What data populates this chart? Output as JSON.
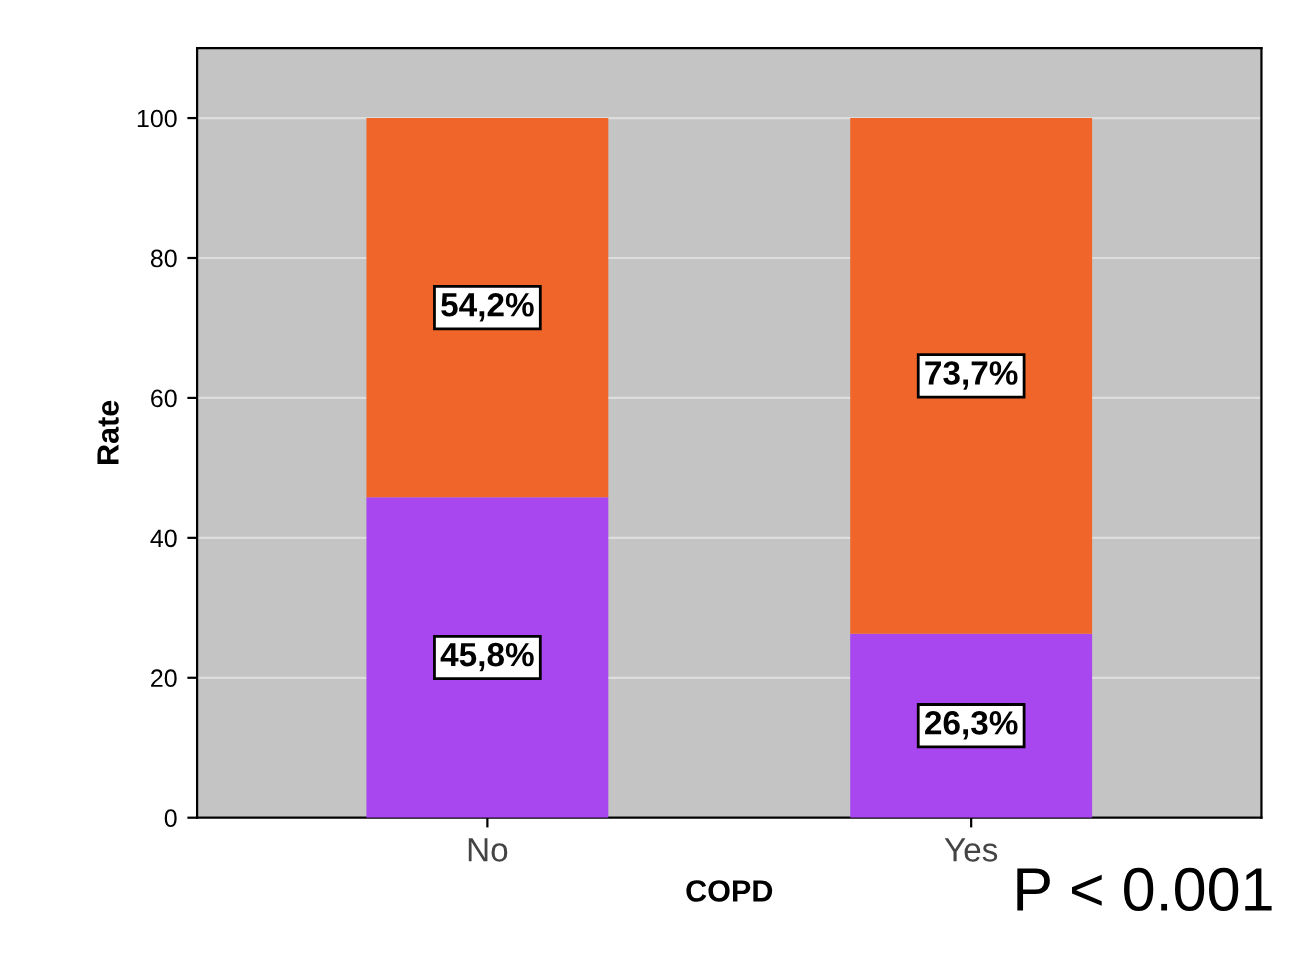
{
  "chart_data": {
    "type": "bar",
    "stacked": true,
    "xlabel": "COPD",
    "ylabel": "Rate",
    "categories": [
      "No",
      "Yes"
    ],
    "series": [
      {
        "color": "#a846f0",
        "values": [
          45.8,
          26.3
        ],
        "value_labels": [
          "45,8%",
          "26,3%"
        ]
      },
      {
        "color": "#f0662a",
        "values": [
          54.2,
          73.7
        ],
        "value_labels": [
          "54,2%",
          "73,7%"
        ]
      }
    ],
    "ylim": [
      0,
      110
    ],
    "yticks": [
      0,
      20,
      40,
      60,
      80,
      100
    ],
    "grid": "y",
    "legend": false,
    "annotations": [
      "P < 0.001"
    ]
  }
}
